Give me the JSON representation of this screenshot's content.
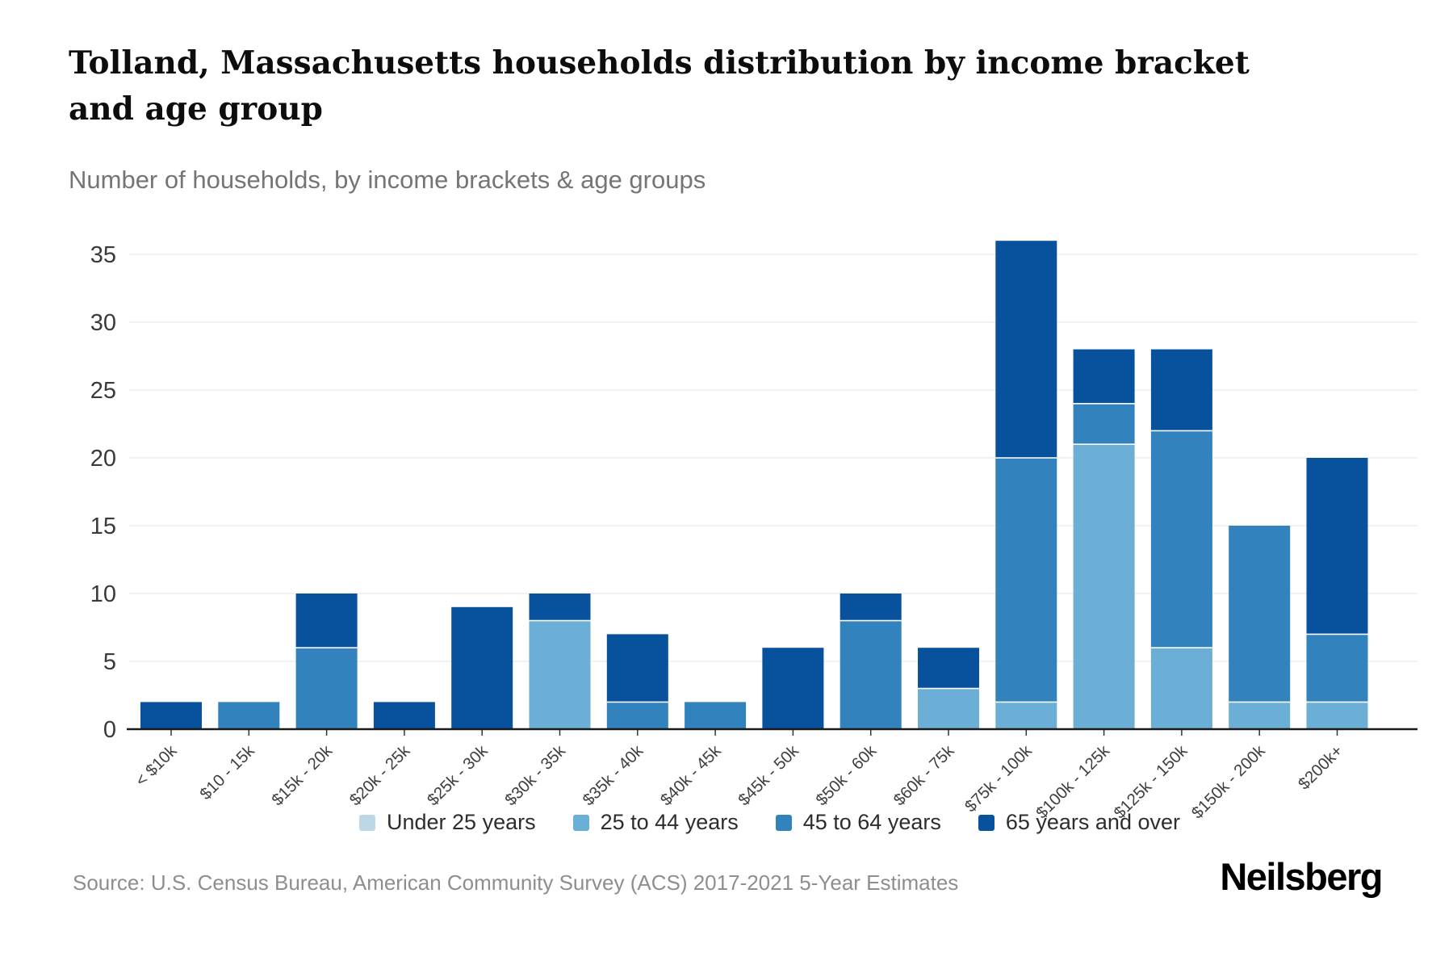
{
  "header": {
    "title": "Tolland, Massachusetts households distribution by income bracket and age group",
    "subtitle": "Number of households, by income brackets & age groups"
  },
  "chart_data": {
    "type": "bar",
    "stacked": true,
    "title": "Tolland, Massachusetts households distribution by income bracket and age group",
    "subtitle": "Number of households, by income brackets & age groups",
    "xlabel": "",
    "ylabel": "",
    "ylim": [
      0,
      36
    ],
    "yticks": [
      0,
      5,
      10,
      15,
      20,
      25,
      30,
      35
    ],
    "grid": true,
    "legend_position": "bottom",
    "categories": [
      "< $10k",
      "$10 - 15k",
      "$15k - 20k",
      "$20k - 25k",
      "$25k - 30k",
      "$30k - 35k",
      "$35k - 40k",
      "$40k - 45k",
      "$45k - 50k",
      "$50k - 60k",
      "$60k - 75k",
      "$75k - 100k",
      "$100k - 125k",
      "$125k - 150k",
      "$150k - 200k",
      "$200k+"
    ],
    "series": [
      {
        "name": "Under 25 years",
        "color": "#bdd7e7",
        "values": [
          0,
          0,
          0,
          0,
          0,
          0,
          0,
          0,
          0,
          0,
          0,
          0,
          0,
          0,
          0,
          0
        ]
      },
      {
        "name": "25 to 44 years",
        "color": "#6baed6",
        "values": [
          0,
          0,
          0,
          0,
          0,
          8,
          0,
          0,
          0,
          0,
          3,
          2,
          21,
          6,
          2,
          2
        ]
      },
      {
        "name": "45 to 64 years",
        "color": "#3182bd",
        "values": [
          0,
          2,
          6,
          0,
          0,
          0,
          2,
          2,
          0,
          8,
          0,
          18,
          3,
          16,
          13,
          5
        ]
      },
      {
        "name": "65 years and over",
        "color": "#08519c",
        "values": [
          2,
          0,
          4,
          2,
          9,
          2,
          5,
          0,
          6,
          2,
          3,
          16,
          4,
          6,
          0,
          13
        ]
      }
    ],
    "totals": [
      2,
      2,
      10,
      2,
      9,
      10,
      7,
      2,
      6,
      10,
      6,
      36,
      28,
      28,
      15,
      20
    ]
  },
  "footer": {
    "source": "Source: U.S. Census Bureau, American Community Survey (ACS) 2017-2021 5-Year Estimates",
    "brand": "Neilsberg"
  }
}
